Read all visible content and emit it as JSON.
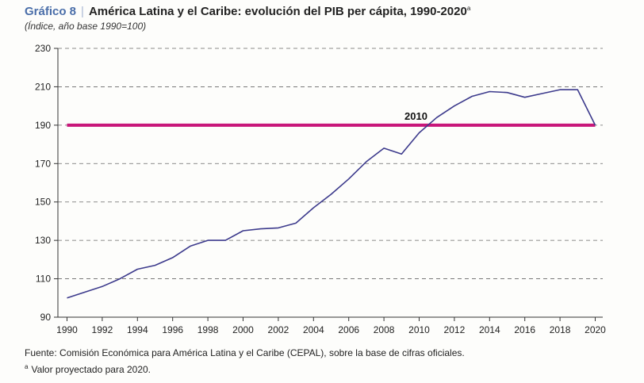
{
  "header": {
    "label": "Gráfico 8",
    "separator": "|",
    "title": "América Latina y el Caribe: evolución del PIB per cápita, 1990-2020",
    "title_mark": "a",
    "subtitle": "(Índice, año base 1990=100)"
  },
  "footer": {
    "source": "Fuente: Comisión Económica para América Latina y el Caribe (CEPAL), sobre la base de cifras oficiales.",
    "note_mark": "a",
    "note": "Valor proyectado para 2020."
  },
  "colors": {
    "series_line": "#3c3a8c",
    "reference_line": "#c8167a",
    "grid": "#666666",
    "axis": "#333333",
    "header_label": "#4a6ea9"
  },
  "chart_data": {
    "type": "line",
    "title": "América Latina y el Caribe: evolución del PIB per cápita, 1990-2020",
    "subtitle": "(Índice, año base 1990=100)",
    "xlabel": "",
    "ylabel": "",
    "xlim": [
      1990,
      2020
    ],
    "ylim": [
      90,
      230
    ],
    "x_ticks": [
      1990,
      1992,
      1994,
      1996,
      1998,
      2000,
      2002,
      2004,
      2006,
      2008,
      2010,
      2012,
      2014,
      2016,
      2018,
      2020
    ],
    "y_ticks": [
      90,
      110,
      130,
      150,
      170,
      190,
      210,
      230
    ],
    "grid": "horizontal dashed",
    "series": [
      {
        "x": [
          1990,
          1991,
          1992,
          1993,
          1994,
          1995,
          1996,
          1997,
          1998,
          1999,
          2000,
          2001,
          2002,
          2003,
          2004,
          2005,
          2006,
          2007,
          2008,
          2009,
          2010,
          2011,
          2012,
          2013,
          2014,
          2015,
          2016,
          2017,
          2018,
          2019,
          2020
        ],
        "values": [
          100,
          103,
          106,
          110,
          115,
          117,
          121,
          127,
          130,
          130,
          135,
          136,
          136.5,
          139,
          147,
          154,
          162,
          171,
          178,
          175,
          186,
          194,
          200,
          205,
          207.5,
          207,
          204.5,
          206.5,
          208.5,
          208.5,
          190
        ]
      }
    ],
    "reference_line": {
      "y": 190,
      "x_start": 1990,
      "x_end": 2020,
      "label": "2010",
      "label_x": 2010
    }
  }
}
